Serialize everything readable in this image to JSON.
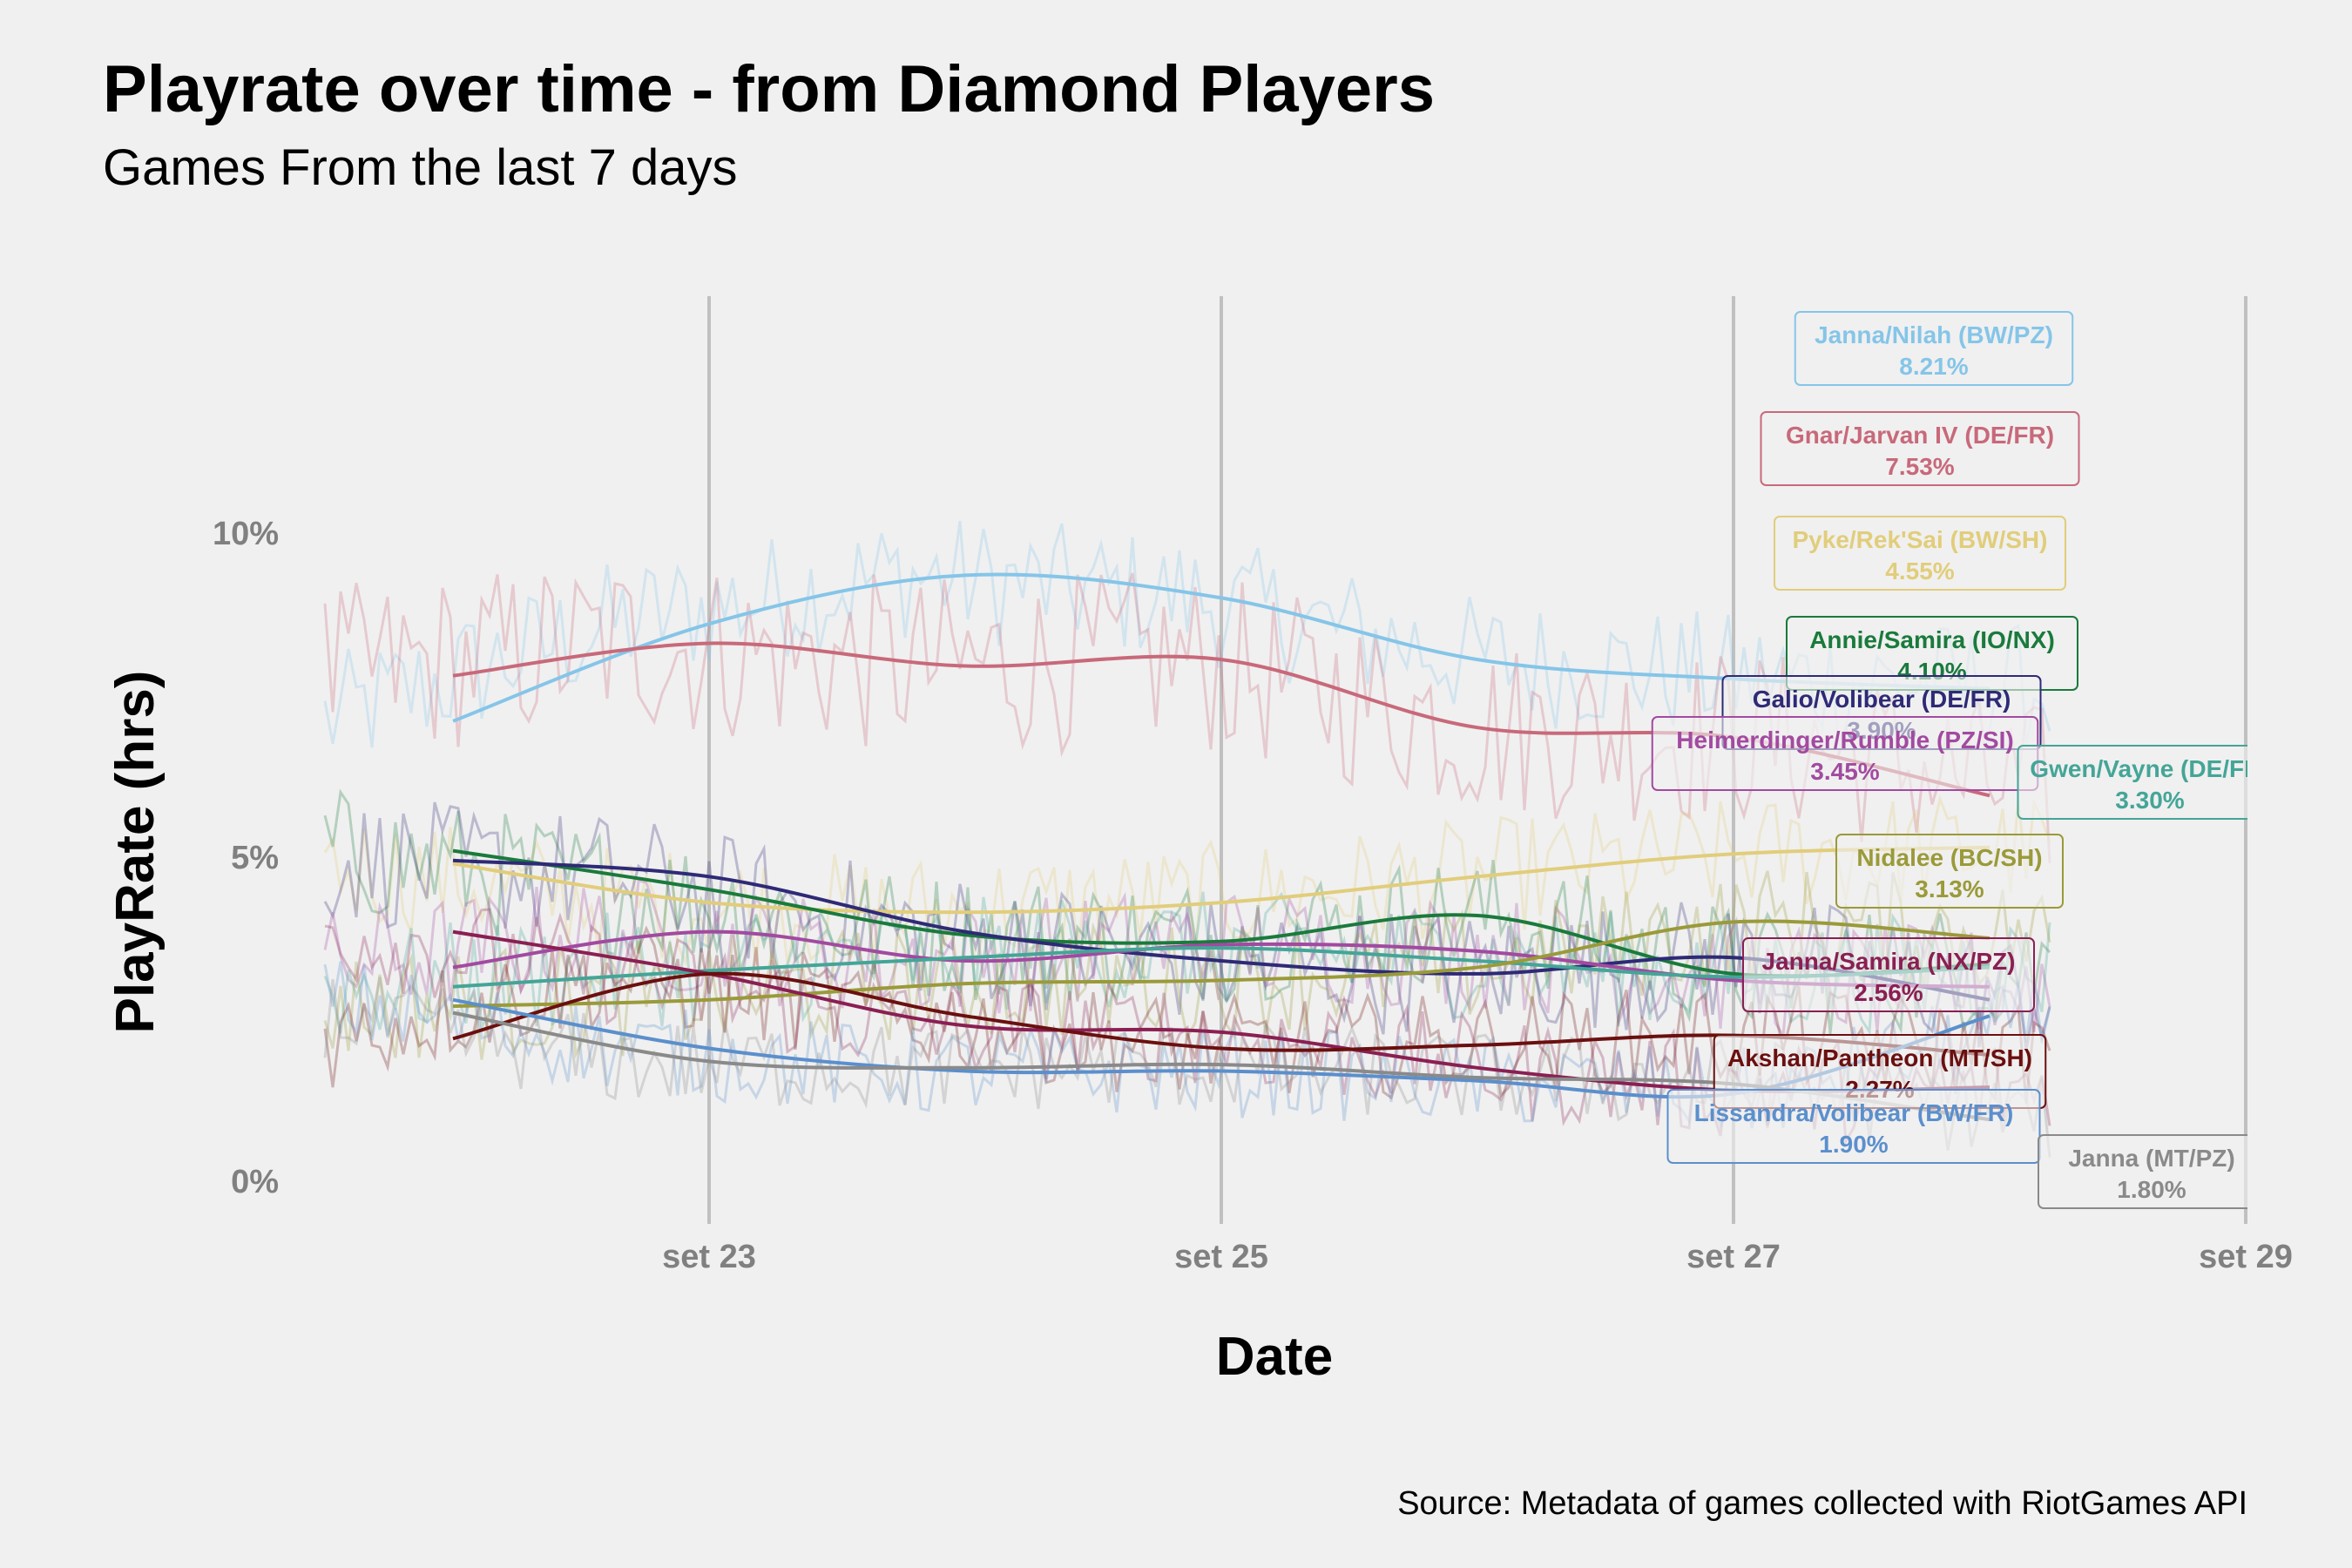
{
  "chart_data": {
    "type": "line",
    "title": "Playrate over time - from Diamond Players",
    "subtitle": "Games From the last 7 days",
    "xlabel": "Date",
    "ylabel": "PlayRate (hrs)",
    "caption": "Source: Metadata of games collected with RiotGames API",
    "x_ticks": [
      "set 23",
      "set 25",
      "set 27",
      "set 29"
    ],
    "y_ticks": [
      "0%",
      "5%",
      "10%"
    ],
    "x_range": [
      "2022-09-21 12:00",
      "2022-09-29 00:00"
    ],
    "ylim": [
      -0.5,
      13.5
    ],
    "grid": "vertical major lines only",
    "legend": "direct labels at right end of lines",
    "series": [
      {
        "name": "Janna/Nilah (BW/PZ)",
        "color": "#85c5e8",
        "end_label": "8.21%",
        "smooth": [
          [
            "2022-09-22 00:00",
            7.1
          ],
          [
            "2022-09-23 00:00",
            8.6
          ],
          [
            "2022-09-24 00:00",
            9.35
          ],
          [
            "2022-09-25 00:00",
            9.0
          ],
          [
            "2022-09-26 00:00",
            8.05
          ],
          [
            "2022-09-27 00:00",
            7.75
          ],
          [
            "2022-09-28 00:00",
            7.6
          ]
        ],
        "raw_base": 8.2,
        "raw_noise": 1.0
      },
      {
        "name": "Gnar/Jarvan IV (DE/FR)",
        "color": "#c8697a",
        "end_label": "7.53%",
        "smooth": [
          [
            "2022-09-22 00:00",
            7.8
          ],
          [
            "2022-09-23 00:00",
            8.3
          ],
          [
            "2022-09-24 00:00",
            7.95
          ],
          [
            "2022-09-25 00:00",
            8.05
          ],
          [
            "2022-09-26 00:00",
            7.0
          ],
          [
            "2022-09-27 00:00",
            6.85
          ],
          [
            "2022-09-28 00:00",
            5.95
          ]
        ],
        "raw_base": 7.5,
        "raw_noise": 1.4
      },
      {
        "name": "Pyke/Rek'Sai (BW/SH)",
        "color": "#e1cd7b",
        "end_label": "4.55%",
        "smooth": [
          [
            "2022-09-22 00:00",
            4.9
          ],
          [
            "2022-09-23 00:00",
            4.3
          ],
          [
            "2022-09-24 00:00",
            4.15
          ],
          [
            "2022-09-25 00:00",
            4.3
          ],
          [
            "2022-09-26 00:00",
            4.7
          ],
          [
            "2022-09-27 00:00",
            5.05
          ],
          [
            "2022-09-28 00:00",
            5.15
          ]
        ],
        "raw_base": 4.6,
        "raw_noise": 0.9
      },
      {
        "name": "Annie/Samira (IO/NX)",
        "color": "#1a7a3c",
        "end_label": "4.10%",
        "smooth": [
          [
            "2022-09-22 00:00",
            5.1
          ],
          [
            "2022-09-23 00:00",
            4.5
          ],
          [
            "2022-09-24 00:00",
            3.8
          ],
          [
            "2022-09-25 00:00",
            3.7
          ],
          [
            "2022-09-26 00:00",
            4.1
          ],
          [
            "2022-09-27 00:00",
            3.2
          ],
          [
            "2022-09-28 00:00",
            3.35
          ]
        ],
        "raw_base": 4.1,
        "raw_noise": 1.0
      },
      {
        "name": "Galio/Volibear (DE/FR)",
        "color": "#2e2a76",
        "end_label": "3.90%",
        "smooth": [
          [
            "2022-09-22 00:00",
            4.95
          ],
          [
            "2022-09-23 00:00",
            4.7
          ],
          [
            "2022-09-24 00:00",
            3.85
          ],
          [
            "2022-09-25 00:00",
            3.4
          ],
          [
            "2022-09-26 00:00",
            3.2
          ],
          [
            "2022-09-27 00:00",
            3.45
          ],
          [
            "2022-09-28 00:00",
            2.8
          ]
        ],
        "raw_base": 3.9,
        "raw_noise": 1.0
      },
      {
        "name": "Heimerdinger/Rumble (PZ/SI)",
        "color": "#a24aa0",
        "end_label": "3.45%",
        "smooth": [
          [
            "2022-09-22 00:00",
            3.3
          ],
          [
            "2022-09-23 00:00",
            3.85
          ],
          [
            "2022-09-24 00:00",
            3.4
          ],
          [
            "2022-09-25 00:00",
            3.65
          ],
          [
            "2022-09-26 00:00",
            3.55
          ],
          [
            "2022-09-27 00:00",
            3.1
          ],
          [
            "2022-09-28 00:00",
            3.0
          ]
        ],
        "raw_base": 3.45,
        "raw_noise": 0.9
      },
      {
        "name": "Gwen/Vayne (DE/FR)",
        "color": "#44a597",
        "end_label": "3.30%",
        "smooth": [
          [
            "2022-09-22 00:00",
            3.0
          ],
          [
            "2022-09-23 00:00",
            3.25
          ],
          [
            "2022-09-24 00:00",
            3.45
          ],
          [
            "2022-09-25 00:00",
            3.6
          ],
          [
            "2022-09-26 00:00",
            3.4
          ],
          [
            "2022-09-27 00:00",
            3.15
          ],
          [
            "2022-09-28 00:00",
            3.3
          ]
        ],
        "raw_base": 3.3,
        "raw_noise": 0.9
      },
      {
        "name": "Nidalee (BC/SH)",
        "color": "#9a9a3a",
        "end_label": "3.13%",
        "smooth": [
          [
            "2022-09-22 00:00",
            2.7
          ],
          [
            "2022-09-23 00:00",
            2.8
          ],
          [
            "2022-09-24 00:00",
            3.05
          ],
          [
            "2022-09-25 00:00",
            3.1
          ],
          [
            "2022-09-26 00:00",
            3.3
          ],
          [
            "2022-09-27 00:00",
            4.0
          ],
          [
            "2022-09-28 00:00",
            3.75
          ]
        ],
        "raw_base": 3.13,
        "raw_noise": 0.9
      },
      {
        "name": "Janna/Samira (NX/PZ)",
        "color": "#8a1f52",
        "end_label": "2.56%",
        "smooth": [
          [
            "2022-09-22 00:00",
            3.85
          ],
          [
            "2022-09-23 00:00",
            3.2
          ],
          [
            "2022-09-24 00:00",
            2.4
          ],
          [
            "2022-09-25 00:00",
            2.3
          ],
          [
            "2022-09-26 00:00",
            1.75
          ],
          [
            "2022-09-27 00:00",
            1.4
          ],
          [
            "2022-09-28 00:00",
            1.45
          ]
        ],
        "raw_base": 2.56,
        "raw_noise": 0.8
      },
      {
        "name": "Akshan/Pantheon (MT/SH)",
        "color": "#6b0f0f",
        "end_label": "2.27%",
        "smooth": [
          [
            "2022-09-22 00:00",
            2.2
          ],
          [
            "2022-09-23 00:00",
            3.2
          ],
          [
            "2022-09-24 00:00",
            2.55
          ],
          [
            "2022-09-25 00:00",
            2.05
          ],
          [
            "2022-09-26 00:00",
            2.1
          ],
          [
            "2022-09-27 00:00",
            2.25
          ],
          [
            "2022-09-28 00:00",
            1.95
          ]
        ],
        "raw_base": 2.27,
        "raw_noise": 0.8
      },
      {
        "name": "Lissandra/Volibear (BW/FR)",
        "color": "#5b8fcc",
        "end_label": "1.90%",
        "smooth": [
          [
            "2022-09-22 00:00",
            2.8
          ],
          [
            "2022-09-23 00:00",
            2.05
          ],
          [
            "2022-09-24 00:00",
            1.7
          ],
          [
            "2022-09-25 00:00",
            1.7
          ],
          [
            "2022-09-26 00:00",
            1.55
          ],
          [
            "2022-09-27 00:00",
            1.35
          ],
          [
            "2022-09-28 00:00",
            2.55
          ]
        ],
        "raw_base": 1.9,
        "raw_noise": 0.7
      },
      {
        "name": "Janna (MT/PZ)",
        "color": "#8a8a8a",
        "end_label": "1.80%",
        "smooth": [
          [
            "2022-09-22 00:00",
            2.6
          ],
          [
            "2022-09-23 00:00",
            1.85
          ],
          [
            "2022-09-24 00:00",
            1.75
          ],
          [
            "2022-09-25 00:00",
            1.8
          ],
          [
            "2022-09-26 00:00",
            1.6
          ],
          [
            "2022-09-27 00:00",
            1.5
          ],
          [
            "2022-09-28 00:00",
            0.95
          ]
        ],
        "raw_base": 1.8,
        "raw_noise": 0.7
      }
    ]
  }
}
